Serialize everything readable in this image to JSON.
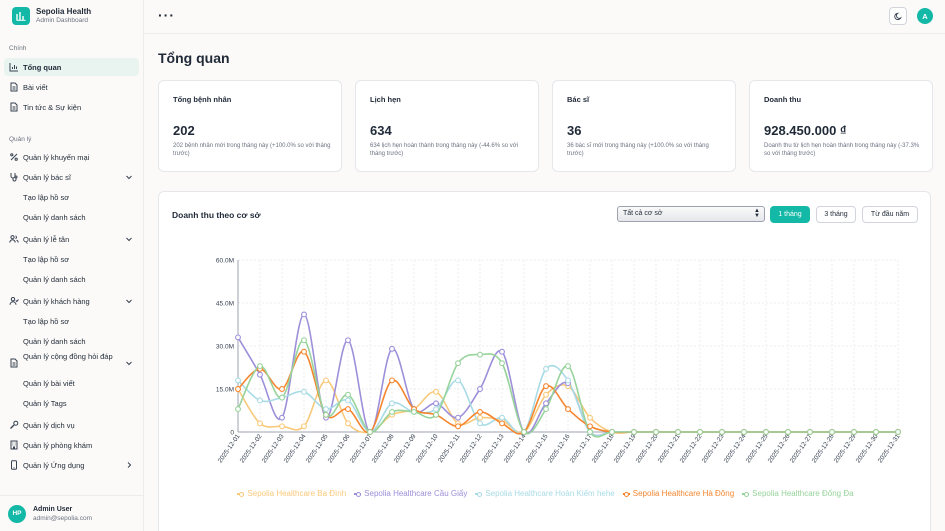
{
  "brand": {
    "name": "Sepolia Health",
    "subtitle": "Admin Dashboard"
  },
  "sidebar": {
    "section_main": "Chính",
    "section_manage": "Quản lý",
    "items": {
      "overview": "Tổng quan",
      "posts": "Bài viết",
      "news": "Tin tức & Sự kiện",
      "promotions": "Quản lý khuyến mại",
      "doctors": "Quản lý bác sĩ",
      "doctors_create": "Tạo lập hồ sơ",
      "doctors_list": "Quản lý danh sách",
      "reception": "Quản lý lễ tân",
      "reception_create": "Tạo lập hồ sơ",
      "reception_list": "Quản lý danh sách",
      "customers": "Quản lý khách hàng",
      "customers_create": "Tạo lập hồ sơ",
      "customers_list": "Quản lý danh sách",
      "community": "Quản lý cộng đồng hỏi đáp",
      "community_posts": "Quản lý bài viết",
      "community_tags": "Quản lý Tags",
      "services": "Quản lý dịch vụ",
      "clinics": "Quản lý phòng khám",
      "apps": "Quản lý Ứng dụng"
    }
  },
  "user": {
    "initials": "HP",
    "name": "Admin User",
    "email": "admin@sepolia.com"
  },
  "topbar": {
    "avatar": "A"
  },
  "page": {
    "title": "Tổng quan"
  },
  "stats": [
    {
      "title": "Tổng bệnh nhân",
      "value": "202",
      "desc": "202 bệnh nhân mới trong tháng này (+100.0% so với tháng trước)"
    },
    {
      "title": "Lịch hẹn",
      "value": "634",
      "desc": "634 lịch hẹn hoàn thành trong tháng này (-44.6% so với tháng trước)"
    },
    {
      "title": "Bác sĩ",
      "value": "36",
      "desc": "36 bác sĩ mới trong tháng này (+100.0% so với tháng trước)"
    },
    {
      "title": "Doanh thu",
      "value": "928.450.000 ₫",
      "desc": "Doanh thu từ lịch hẹn hoàn thành trong tháng này (-37.3% so với tháng trước)"
    }
  ],
  "revenue": {
    "title": "Doanh thu theo cơ sở",
    "select_value": "Tất cả cơ sở",
    "ranges": [
      "1 tháng",
      "3 tháng",
      "Từ đầu năm"
    ]
  },
  "chart_data": {
    "type": "line",
    "x": [
      "2025-12-01",
      "2025-12-02",
      "2025-12-03",
      "2025-12-04",
      "2025-12-05",
      "2025-12-06",
      "2025-12-07",
      "2025-12-08",
      "2025-12-09",
      "2025-12-10",
      "2025-12-11",
      "2025-12-12",
      "2025-12-13",
      "2025-12-14",
      "2025-12-15",
      "2025-12-16",
      "2025-12-17",
      "2025-12-18",
      "2025-12-19",
      "2025-12-20",
      "2025-12-21",
      "2025-12-22",
      "2025-12-23",
      "2025-12-24",
      "2025-12-25",
      "2025-12-26",
      "2025-12-27",
      "2025-12-28",
      "2025-12-29",
      "2025-12-30",
      "2025-12-31"
    ],
    "y_ticks": [
      "0",
      "15.0M",
      "30.0M",
      "45.0M",
      "60.0M"
    ],
    "ylim": [
      0,
      60
    ],
    "y_unit": "M",
    "grid": true,
    "legend_position": "bottom",
    "series": [
      {
        "name": "Sepolia Healthcare Ba Đình",
        "color": "#f9c97a",
        "values": [
          15,
          3,
          2,
          2,
          18,
          3,
          0,
          6,
          8,
          14,
          3,
          5,
          4,
          0,
          13,
          16,
          5,
          0,
          0,
          0,
          0,
          0,
          0,
          0,
          0,
          0,
          0,
          0,
          0,
          0,
          0
        ]
      },
      {
        "name": "Sepolia Healthcare Cầu Giấy",
        "color": "#9d8fd9",
        "values": [
          33,
          20,
          5,
          41,
          5,
          32,
          0,
          29,
          8,
          10,
          5,
          15,
          28,
          0,
          10,
          17,
          0,
          0,
          0,
          0,
          0,
          0,
          0,
          0,
          0,
          0,
          0,
          0,
          0,
          0,
          0
        ]
      },
      {
        "name": "Sepolia Healthcare Hoàn Kiếm hehe",
        "color": "#a8dbe6",
        "values": [
          18,
          11,
          12,
          14,
          8,
          11,
          0,
          10,
          7,
          8,
          18,
          3,
          5,
          0,
          22,
          18,
          0,
          0,
          0,
          0,
          0,
          0,
          0,
          0,
          0,
          0,
          0,
          0,
          0,
          0,
          0
        ]
      },
      {
        "name": "Sepolia Healthcare Hà Đông",
        "color": "#f5862f",
        "values": [
          15,
          22,
          15,
          28,
          6,
          8,
          0,
          18,
          8,
          6,
          2,
          7,
          3,
          0,
          16,
          8,
          2,
          0,
          0,
          0,
          0,
          0,
          0,
          0,
          0,
          0,
          0,
          0,
          0,
          0,
          0
        ]
      },
      {
        "name": "Sepolia Healthcare Đống Đa",
        "color": "#97d39b",
        "values": [
          8,
          23,
          12,
          32,
          6,
          13,
          0,
          7,
          7,
          6,
          24,
          27,
          24,
          0,
          8,
          23,
          0,
          0,
          0,
          0,
          0,
          0,
          0,
          0,
          0,
          0,
          0,
          0,
          0,
          0,
          0
        ]
      }
    ]
  }
}
